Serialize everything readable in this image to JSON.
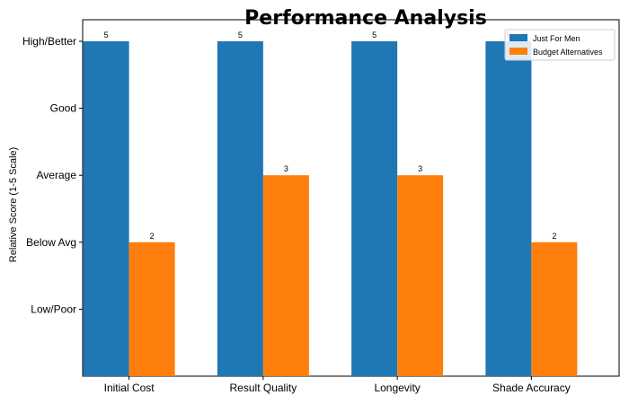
{
  "chart_data": {
    "type": "bar",
    "title": "Performance Analysis",
    "xlabel": "",
    "ylabel": "Relative Score (1-5 Scale)",
    "categories": [
      "Initial Cost",
      "Result Quality",
      "Longevity",
      "Shade Accuracy"
    ],
    "series": [
      {
        "name": "Just For Men",
        "values": [
          5,
          5,
          5,
          5
        ],
        "color": "#1f77b4"
      },
      {
        "name": "Budget Alternatives",
        "values": [
          2,
          3,
          3,
          2
        ],
        "color": "#ff7f0e"
      }
    ],
    "ylim": [
      0,
      5
    ],
    "yticks": [
      1,
      2,
      3,
      4,
      5
    ],
    "ytick_labels": [
      "Low/Poor",
      "Below Avg",
      "Average",
      "Good",
      "High/Better"
    ],
    "grid": false,
    "legend_position": "top-right",
    "data_labels": true
  }
}
